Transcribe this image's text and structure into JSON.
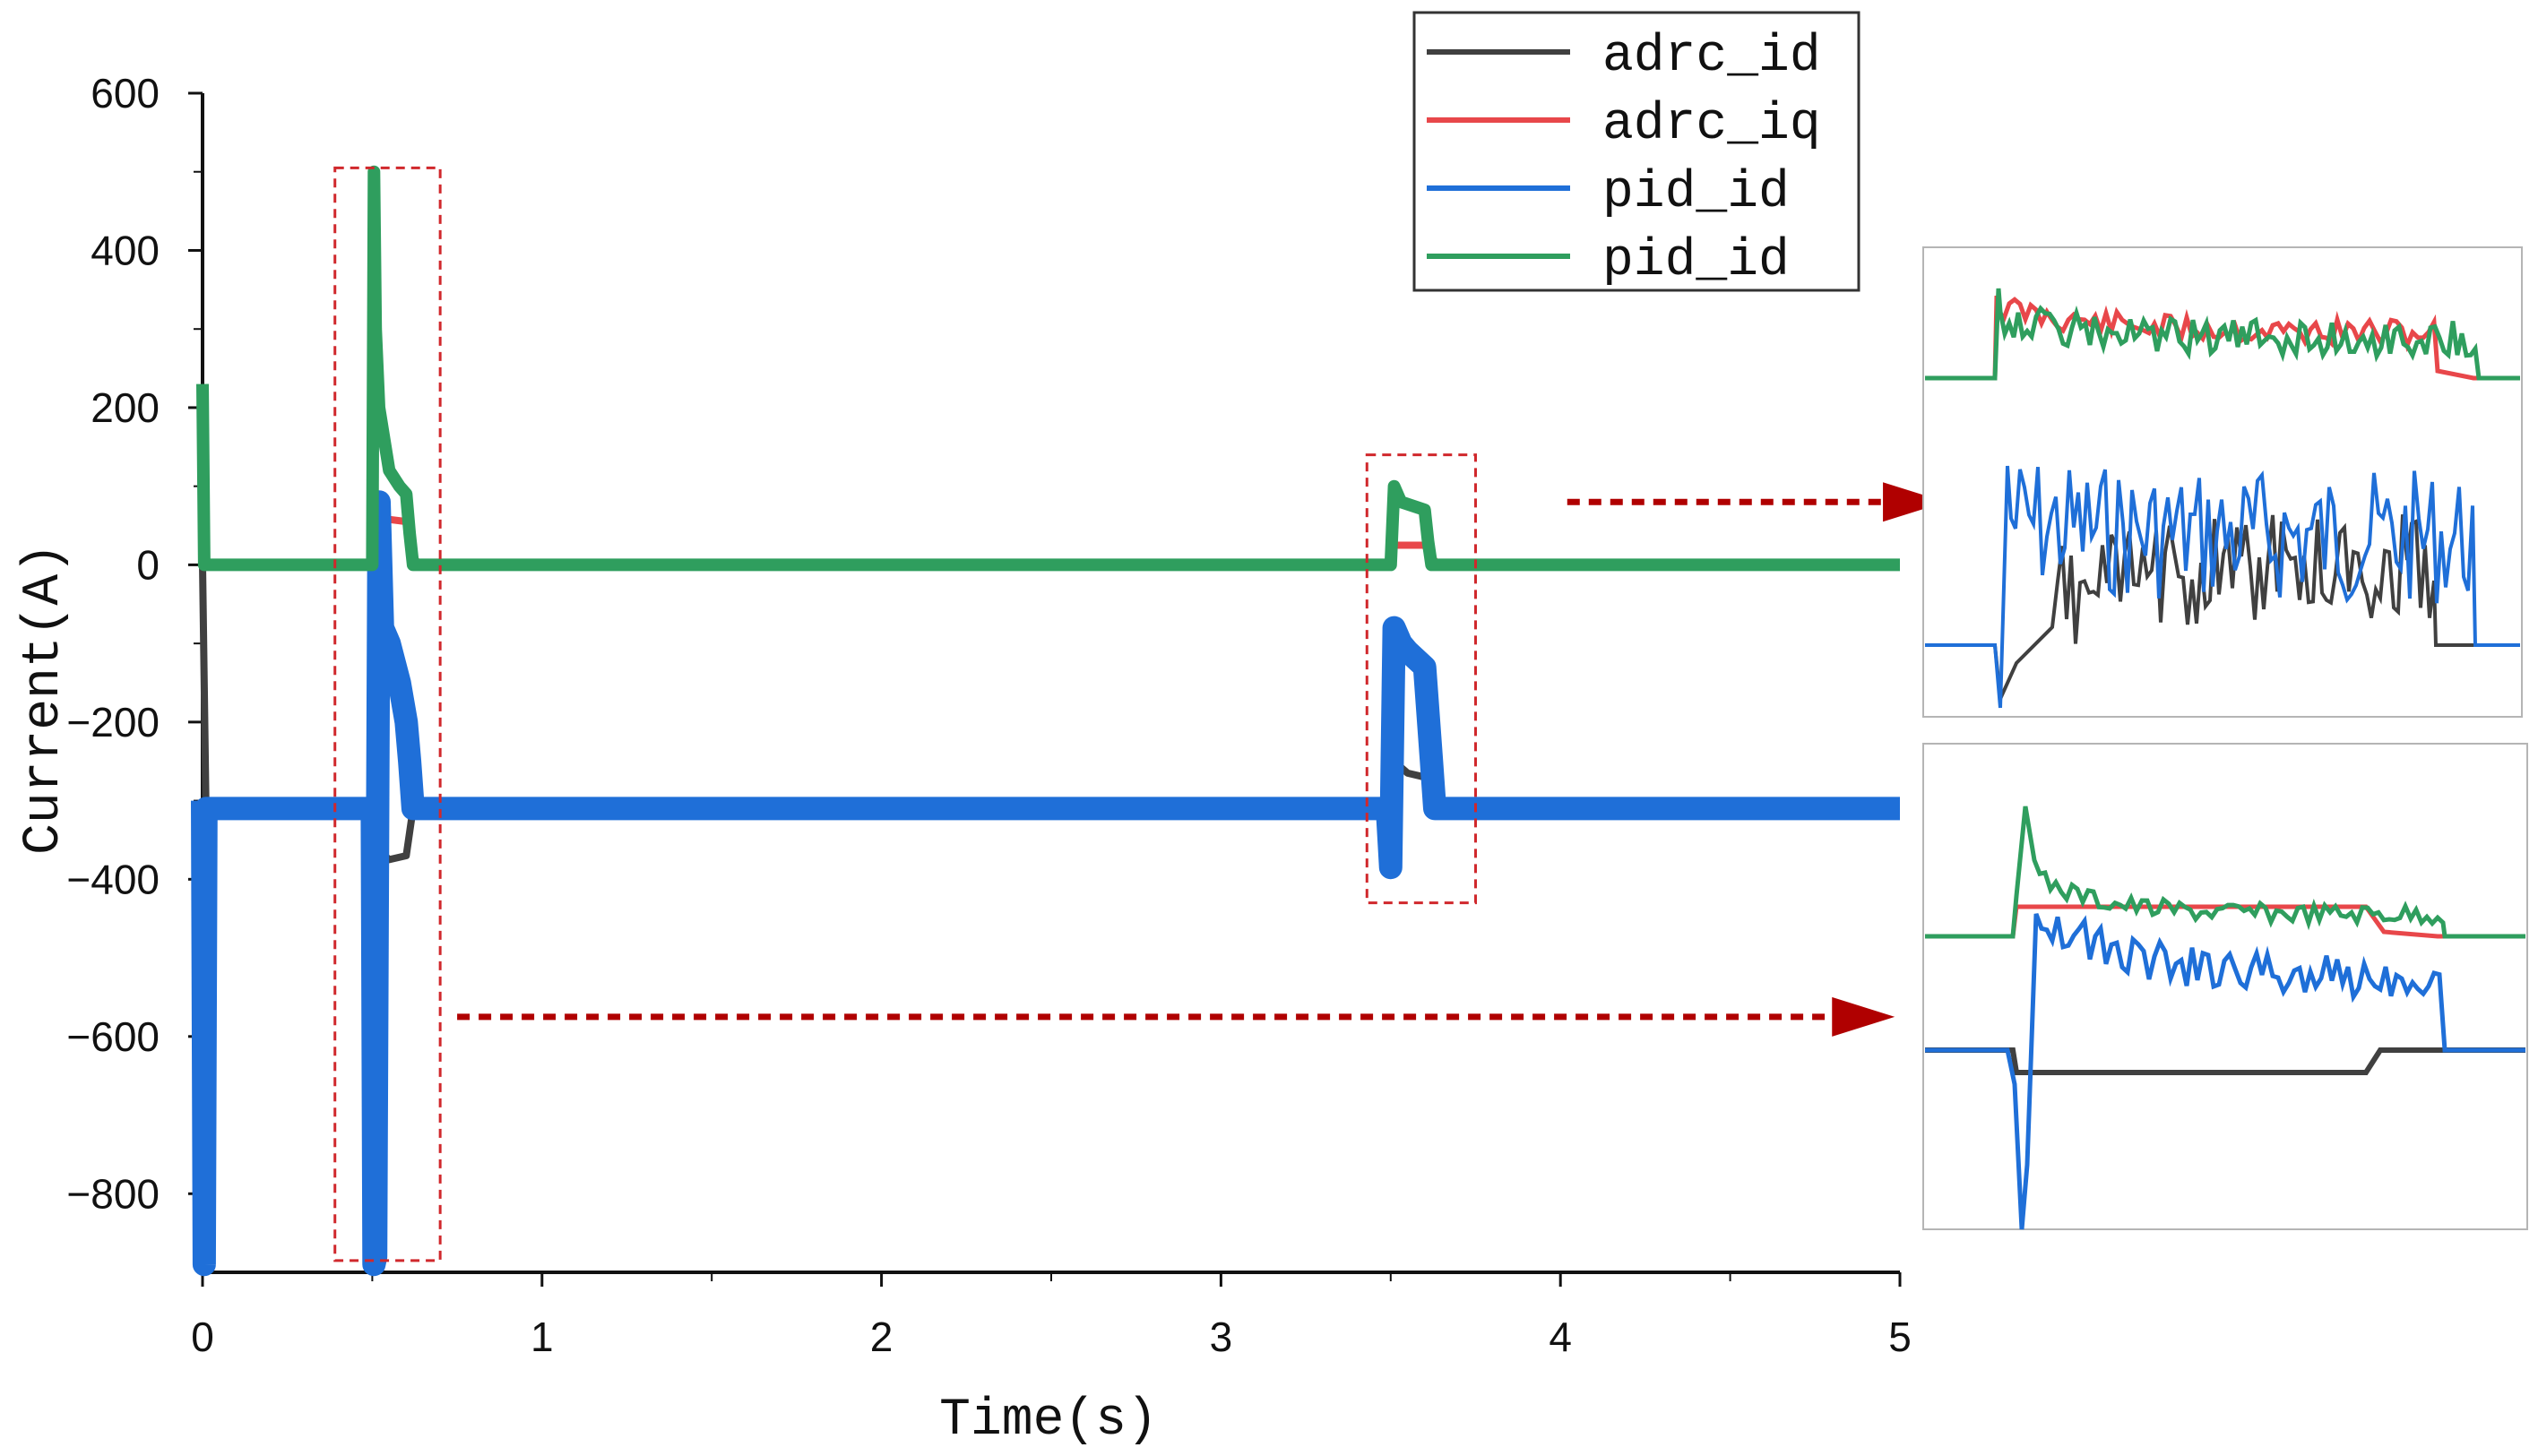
{
  "chart_data": {
    "type": "line",
    "xlabel": "Time(s)",
    "ylabel": "Current(A)",
    "xlim": [
      0,
      5
    ],
    "ylim": [
      -900,
      600
    ],
    "x_ticks": [
      0,
      1,
      2,
      3,
      4,
      5
    ],
    "x_tick_labels": [
      "0",
      "1",
      "2",
      "3",
      "4",
      "5"
    ],
    "y_ticks": [
      600,
      400,
      200,
      0,
      -200,
      -400,
      -600,
      -800
    ],
    "y_tick_labels": [
      "600",
      "400",
      "200",
      "0",
      "−200",
      "−400",
      "−600",
      "−800"
    ],
    "grid": false,
    "legend_position": "top-right",
    "legend": [
      "adrc_id",
      "adrc_iq",
      "pid_id",
      "pid_id"
    ],
    "series": [
      {
        "name": "adrc_id",
        "color": "#404040",
        "x": [
          0,
          0.01,
          0.5,
          0.51,
          0.55,
          0.6,
          0.61,
          0.62,
          0.63,
          1.0,
          3.5,
          3.51,
          3.55,
          3.6,
          3.61,
          3.62,
          3.63,
          5.0
        ],
        "y": [
          0,
          -310,
          -310,
          -360,
          -375,
          -370,
          -340,
          -310,
          -310,
          -310,
          -310,
          -250,
          -265,
          -270,
          -290,
          -300,
          -310,
          -310
        ]
      },
      {
        "name": "adrc_iq",
        "color": "#e8474a",
        "x": [
          0,
          0.01,
          0.5,
          0.51,
          0.6,
          0.61,
          0.62,
          0.64,
          1.0,
          3.5,
          3.51,
          3.6,
          3.62,
          3.64,
          5.0
        ],
        "y": [
          60,
          0,
          0,
          60,
          55,
          30,
          10,
          0,
          0,
          0,
          25,
          25,
          10,
          0,
          0
        ]
      },
      {
        "name": "pid_id",
        "color": "#1f6fd8",
        "x": [
          0,
          0.005,
          0.01,
          0.5,
          0.505,
          0.51,
          0.52,
          0.53,
          0.55,
          0.58,
          0.6,
          0.61,
          0.62,
          1.0,
          3.49,
          3.5,
          3.51,
          3.53,
          3.55,
          3.6,
          3.62,
          3.63,
          5.0
        ],
        "y": [
          -300,
          -890,
          -310,
          -310,
          -890,
          -880,
          80,
          -80,
          -100,
          -150,
          -200,
          -250,
          -310,
          -310,
          -310,
          -385,
          -80,
          -100,
          -110,
          -130,
          -250,
          -310,
          -310
        ]
      },
      {
        "name": "pid_id",
        "color": "#2f9e5e",
        "x": [
          0,
          0.005,
          0.01,
          0.5,
          0.505,
          0.51,
          0.52,
          0.55,
          0.58,
          0.6,
          0.61,
          0.62,
          1.0,
          3.5,
          3.51,
          3.53,
          3.6,
          3.61,
          3.62,
          5.0
        ],
        "y": [
          230,
          0,
          0,
          0,
          500,
          300,
          200,
          120,
          100,
          90,
          40,
          0,
          0,
          0,
          100,
          80,
          70,
          30,
          0,
          0
        ]
      }
    ],
    "annotations": [
      {
        "type": "dashed-box",
        "x_range": [
          0.39,
          0.7
        ],
        "y_range": [
          -885,
          505
        ],
        "color": "#d0282c"
      },
      {
        "type": "dashed-box",
        "x_range": [
          3.43,
          3.75
        ],
        "y_range": [
          -430,
          140
        ],
        "color": "#d0282c"
      },
      {
        "type": "arrow",
        "from": [
          4.02,
          80
        ],
        "to": [
          4.95,
          80
        ],
        "color": "#b00000"
      },
      {
        "type": "arrow",
        "from": [
          0.75,
          -575
        ],
        "to": [
          4.8,
          -575
        ],
        "color": "#b00000"
      }
    ]
  },
  "insets": [
    {
      "name": "inset-zoom-second-step",
      "colors": [
        "#e8474a",
        "#2f9e5e",
        "#404040",
        "#1f6fd8"
      ]
    },
    {
      "name": "inset-zoom-first-step",
      "colors": [
        "#e8474a",
        "#2f9e5e",
        "#404040",
        "#1f6fd8"
      ]
    }
  ]
}
